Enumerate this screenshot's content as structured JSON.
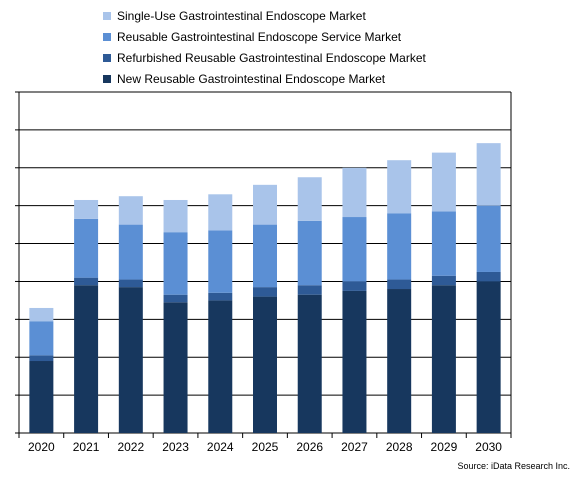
{
  "chart_data": {
    "type": "bar",
    "stacked": true,
    "title": "",
    "xlabel": "",
    "ylabel": "",
    "y_tick_labels_shown": false,
    "categories": [
      "2020",
      "2021",
      "2022",
      "2023",
      "2024",
      "2025",
      "2026",
      "2027",
      "2028",
      "2029",
      "2030"
    ],
    "ylim": [
      0,
      9
    ],
    "y_gridlines": [
      0,
      1,
      2,
      3,
      4,
      5,
      6,
      7,
      8,
      9
    ],
    "grid": true,
    "legend_position": "top-left",
    "series": [
      {
        "name": "New Reusable Gastrointestinal Endoscope Market",
        "color": "#17375e",
        "values": [
          1.9,
          3.9,
          3.85,
          3.45,
          3.5,
          3.6,
          3.65,
          3.75,
          3.8,
          3.9,
          4.0
        ]
      },
      {
        "name": "Refurbished Reusable Gastrointestinal Endoscope Market",
        "color": "#2e5a96",
        "values": [
          0.15,
          0.2,
          0.2,
          0.2,
          0.2,
          0.25,
          0.25,
          0.25,
          0.25,
          0.25,
          0.25
        ]
      },
      {
        "name": "Reusable Gastrointestinal Endoscope Service Market",
        "color": "#5b8fd4",
        "values": [
          0.9,
          1.55,
          1.45,
          1.65,
          1.65,
          1.65,
          1.7,
          1.7,
          1.75,
          1.7,
          1.75
        ]
      },
      {
        "name": "Single-Use Gastrointestinal Endoscope Market",
        "color": "#a9c4ea",
        "values": [
          0.35,
          0.5,
          0.75,
          0.85,
          0.95,
          1.05,
          1.15,
          1.3,
          1.4,
          1.55,
          1.65
        ]
      }
    ],
    "source": "Source: iData Research Inc."
  }
}
